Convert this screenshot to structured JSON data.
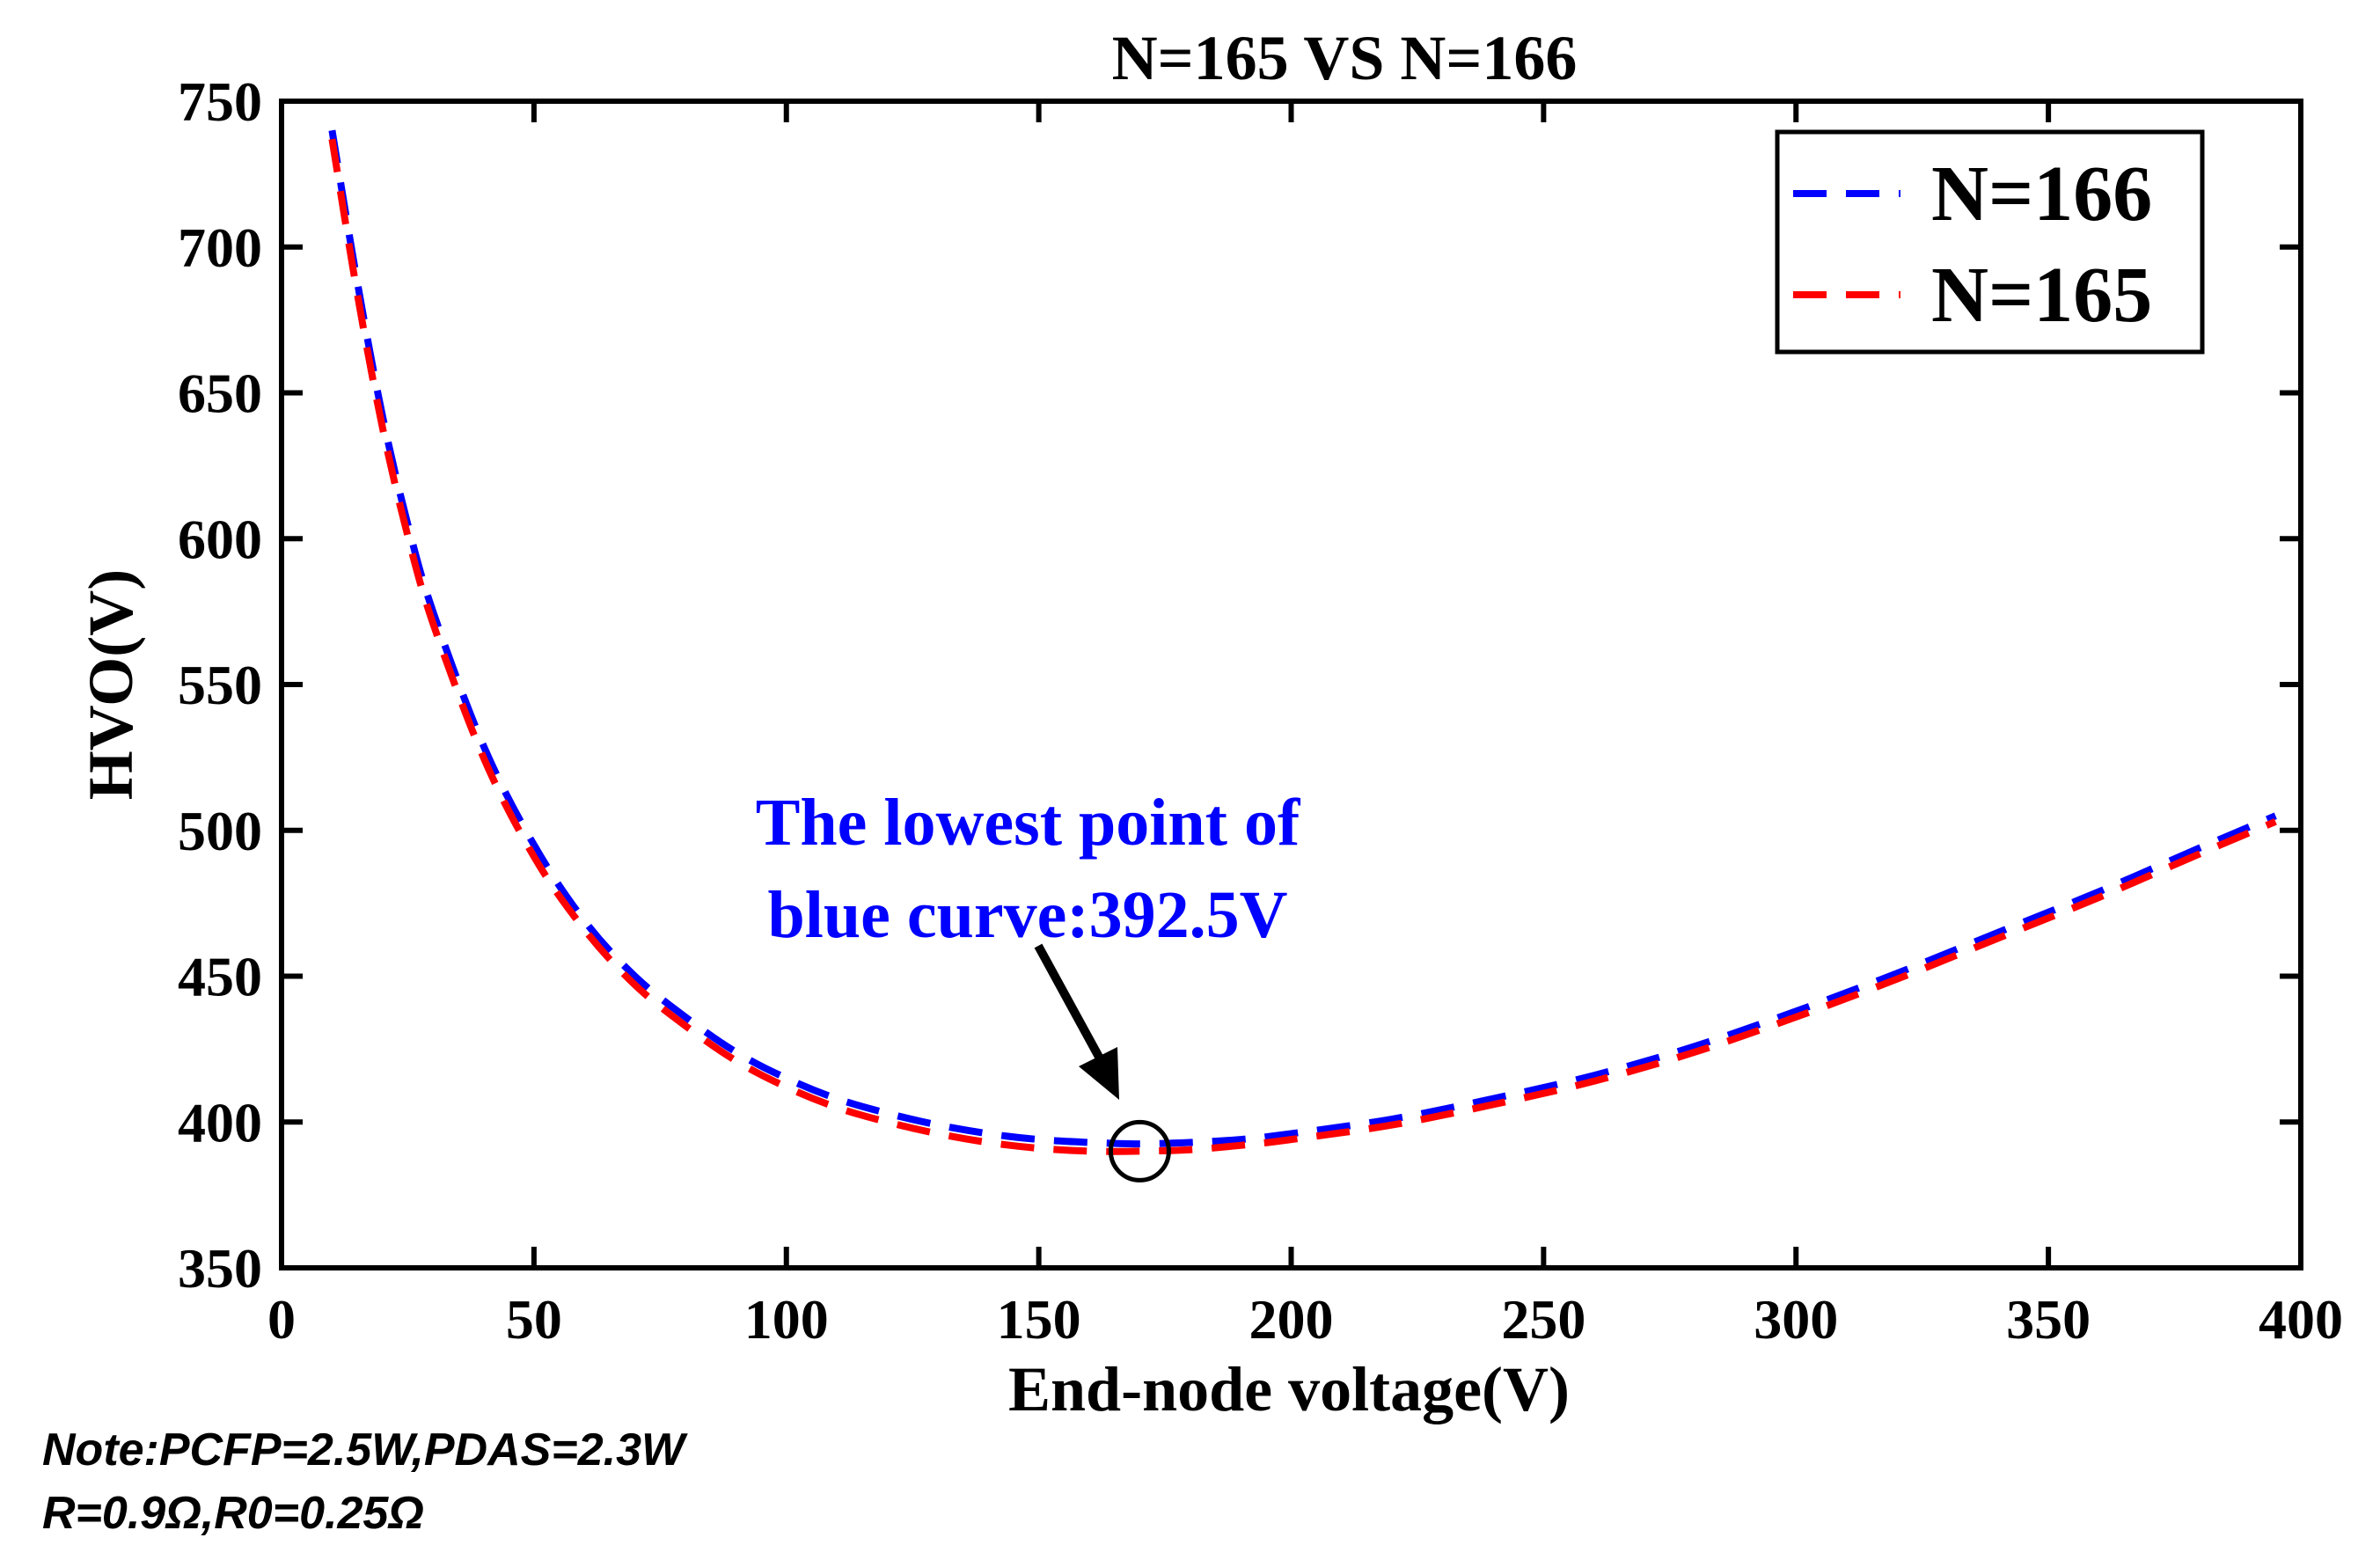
{
  "chart_data": {
    "type": "line",
    "title": "N=165  VS  N=166",
    "xlabel": "End-node voltage(V)",
    "ylabel": "HVO(V)",
    "xlim": [
      0,
      400
    ],
    "ylim": [
      350,
      750
    ],
    "xticks": [
      0,
      50,
      100,
      150,
      200,
      250,
      300,
      350,
      400
    ],
    "yticks": [
      350,
      400,
      450,
      500,
      550,
      600,
      650,
      700,
      750
    ],
    "grid": false,
    "legend_position": "top-right",
    "series": [
      {
        "name": "N=166",
        "color": "#0000ff",
        "style": "dashed",
        "x": [
          10,
          15,
          20,
          25,
          30,
          40,
          50,
          60,
          70,
          80,
          90,
          100,
          110,
          120,
          130,
          140,
          150,
          160,
          170,
          180,
          190,
          200,
          220,
          240,
          260,
          280,
          300,
          320,
          340,
          360,
          380,
          395
        ],
        "y": [
          740,
          688,
          642,
          605,
          575,
          529,
          495,
          469,
          450,
          436,
          424,
          415,
          408,
          403,
          399,
          396,
          394,
          393,
          392.5,
          393,
          394,
          396,
          401,
          408,
          416,
          426,
          438,
          451,
          465,
          479,
          494,
          505
        ]
      },
      {
        "name": "N=165",
        "color": "#ff0000",
        "style": "dashed",
        "x": [
          10,
          15,
          20,
          25,
          30,
          40,
          50,
          60,
          70,
          80,
          90,
          100,
          110,
          120,
          130,
          140,
          150,
          160,
          170,
          180,
          190,
          200,
          220,
          240,
          260,
          280,
          300,
          320,
          340,
          360,
          380,
          395
        ],
        "y": [
          737,
          684,
          638,
          601,
          571,
          525,
          491,
          466,
          447,
          433,
          421,
          412,
          405,
          400,
          396,
          393,
          391,
          390,
          390,
          390.5,
          392,
          394,
          399,
          406,
          414,
          424,
          436,
          449,
          463,
          477,
          492,
          503
        ]
      }
    ],
    "annotation": {
      "text_line1": "The lowest point of",
      "text_line2": "blue curve:392.5V",
      "color": "#0000ff",
      "target_x": 170,
      "target_y": 392.5
    },
    "note": {
      "line1": "Note:PCFP=2.5W,PDAS=2.3W",
      "line2": "R=0.9Ω,R0=0.25Ω"
    }
  }
}
